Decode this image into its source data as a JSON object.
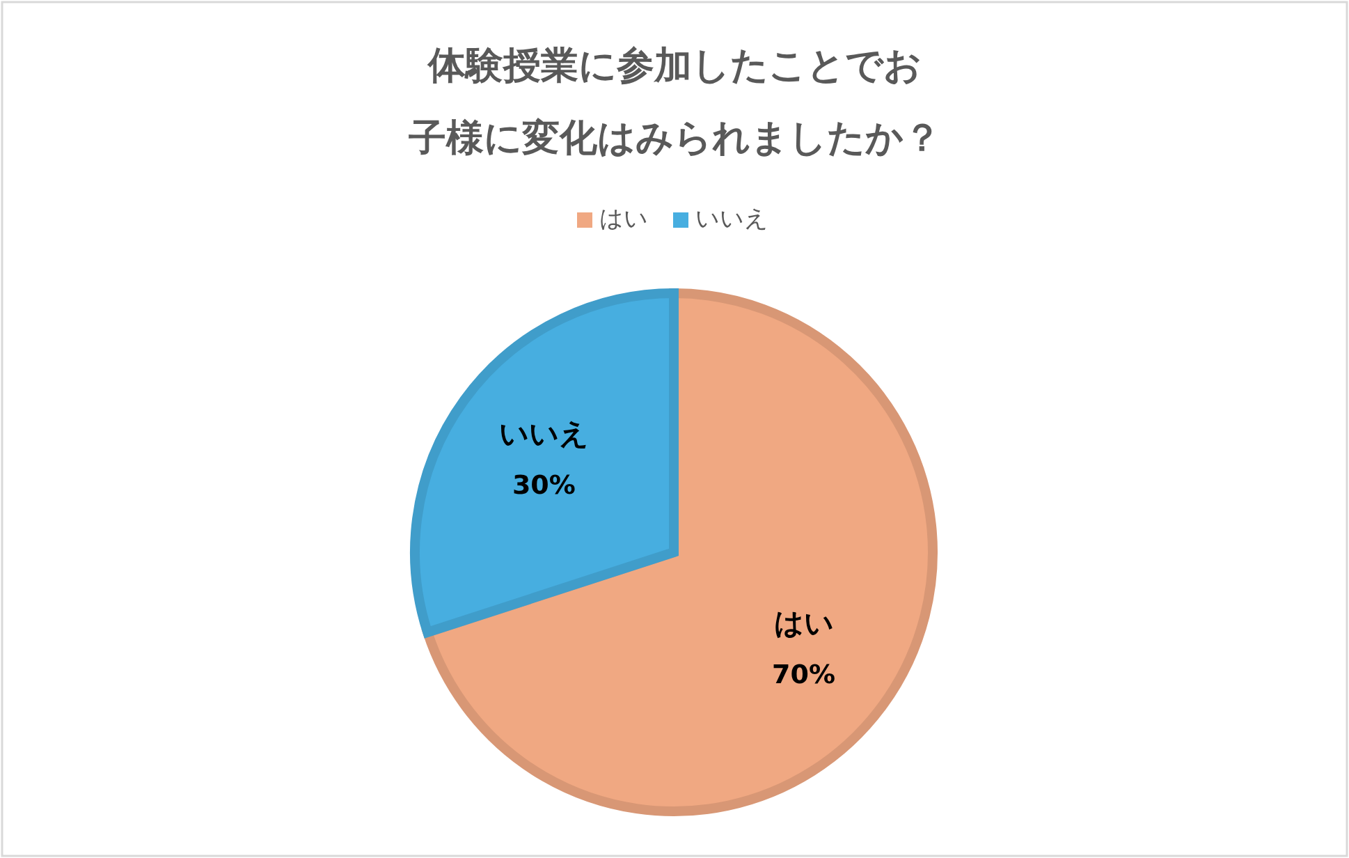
{
  "chart_data": {
    "type": "pie",
    "title": "体験授業に参加したことでお子様に変化はみられましたか？",
    "categories": [
      "はい",
      "いいえ"
    ],
    "values": [
      70,
      30
    ],
    "colors": [
      "#f0a882",
      "#47aee0"
    ],
    "value_labels": [
      "70%",
      "30%"
    ],
    "legend": "top"
  }
}
